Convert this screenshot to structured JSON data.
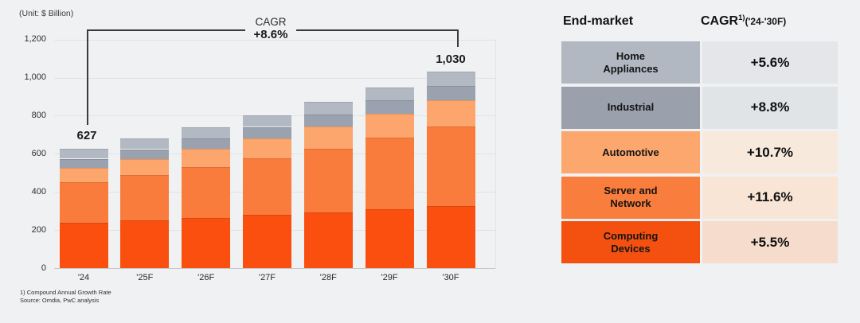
{
  "page": {
    "background": "#F0F1F2"
  },
  "chart": {
    "unit_label": "(Unit: $ Billion)",
    "cagr_title": "CAGR",
    "cagr_value": "+8.6%",
    "first_total_label": "627",
    "last_total_label": "1,030"
  },
  "chart_data": {
    "type": "bar",
    "stacked": true,
    "title": "Semiconductor end-market size by year",
    "unit": "$ Billion",
    "categories": [
      "'24",
      "'25F",
      "'26F",
      "'27F",
      "'28F",
      "'29F",
      "'30F"
    ],
    "series": [
      {
        "name": "Computing Devices",
        "color": "#FA4F0E",
        "values": [
          237,
          250,
          264,
          279,
          294,
          310,
          327
        ]
      },
      {
        "name": "Server and Network",
        "color": "#F97C3C",
        "values": [
          215,
          240,
          268,
          299,
          334,
          373,
          415
        ]
      },
      {
        "name": "Automotive",
        "color": "#FCA56C",
        "values": [
          76,
          84,
          93,
          103,
          114,
          126,
          139
        ]
      },
      {
        "name": "Industrial",
        "color": "#9AA2AF",
        "values": [
          46,
          50,
          55,
          60,
          65,
          71,
          76
        ]
      },
      {
        "name": "Home Appliances",
        "color": "#B2B9C3",
        "values": [
          53,
          56,
          59,
          62,
          66,
          70,
          73
        ]
      }
    ],
    "totals": [
      627,
      680,
      739,
      803,
      873,
      950,
      1030
    ],
    "ylim": [
      0,
      1200
    ],
    "yticks": [
      {
        "value": 0,
        "label": "0"
      },
      {
        "value": 200,
        "label": "200"
      },
      {
        "value": 400,
        "label": "400"
      },
      {
        "value": 600,
        "label": "600"
      },
      {
        "value": 800,
        "label": "800"
      },
      {
        "value": 1000,
        "label": "1,000"
      },
      {
        "value": 1200,
        "label": "1,200"
      }
    ],
    "grid": true,
    "annotations": {
      "cagr_bracket": {
        "label": "CAGR",
        "value": "+8.6%",
        "from": "'24",
        "to": "'30F"
      },
      "bar_totals_shown": {
        "'24": "627",
        "'30F": "1,030"
      }
    }
  },
  "table": {
    "header_left": "End-market",
    "header_right_main": "CAGR",
    "header_right_sup": "1)",
    "header_right_range": "('24-'30F)",
    "rows": [
      {
        "label": "Home\nAppliances",
        "cagr": "+5.6%",
        "label_bg": "#B1B8C2",
        "value_bg": "#E4E6E9"
      },
      {
        "label": "Industrial",
        "cagr": "+8.8%",
        "label_bg": "#9AA1AD",
        "value_bg": "#E1E4E7"
      },
      {
        "label": "Automotive",
        "cagr": "+10.7%",
        "label_bg": "#FCA76D",
        "value_bg": "#F7EADD"
      },
      {
        "label": "Server and\nNetwork",
        "cagr": "+11.6%",
        "label_bg": "#F97D3C",
        "value_bg": "#F8E5D5"
      },
      {
        "label": "Computing\nDevices",
        "cagr": "+5.5%",
        "label_bg": "#F4500F",
        "value_bg": "#F6DCCC"
      }
    ]
  },
  "footnotes": [
    "1) Compound Annual Growth Rate",
    "Source: Omdia, PwC analysis"
  ]
}
